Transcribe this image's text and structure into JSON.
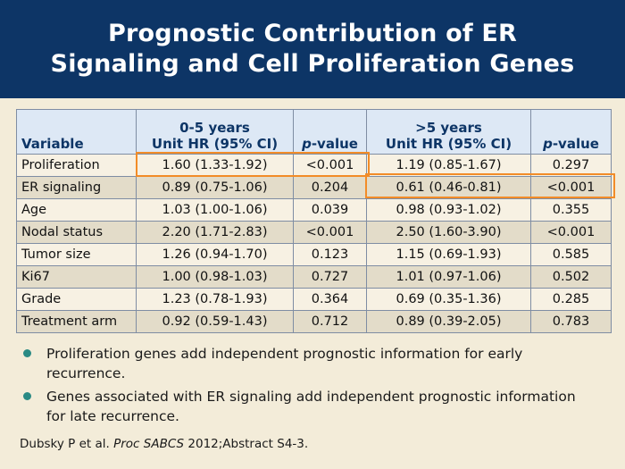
{
  "title": {
    "line1": "Prognostic Contribution of ER",
    "line2": "Signaling and Cell Proliferation Genes"
  },
  "table": {
    "headers": {
      "variable": "Variable",
      "group1": "0-5 years",
      "hr_label": "Unit HR (95% CI)",
      "pvalue_p": "p",
      "pvalue_rest": "-value",
      "group2": ">5 years"
    },
    "rows": [
      {
        "variable": "Proliferation",
        "hr1": "1.60 (1.33-1.92)",
        "p1": "<0.001",
        "hr2": "1.19 (0.85-1.67)",
        "p2": "0.297"
      },
      {
        "variable": "ER signaling",
        "hr1": "0.89 (0.75-1.06)",
        "p1": "0.204",
        "hr2": "0.61 (0.46-0.81)",
        "p2": "<0.001"
      },
      {
        "variable": "Age",
        "hr1": "1.03 (1.00-1.06)",
        "p1": "0.039",
        "hr2": "0.98 (0.93-1.02)",
        "p2": "0.355"
      },
      {
        "variable": "Nodal status",
        "hr1": "2.20 (1.71-2.83)",
        "p1": "<0.001",
        "hr2": "2.50 (1.60-3.90)",
        "p2": "<0.001"
      },
      {
        "variable": "Tumor size",
        "hr1": "1.26 (0.94-1.70)",
        "p1": "0.123",
        "hr2": "1.15 (0.69-1.93)",
        "p2": "0.585"
      },
      {
        "variable": "Ki67",
        "hr1": "1.00 (0.98-1.03)",
        "p1": "0.727",
        "hr2": "1.01 (0.97-1.06)",
        "p2": "0.502"
      },
      {
        "variable": "Grade",
        "hr1": "1.23 (0.78-1.93)",
        "p1": "0.364",
        "hr2": "0.69 (0.35-1.36)",
        "p2": "0.285"
      },
      {
        "variable": "Treatment arm",
        "hr1": "0.92 (0.59-1.43)",
        "p1": "0.712",
        "hr2": "0.89 (0.39-2.05)",
        "p2": "0.783"
      }
    ]
  },
  "bullets": [
    "Proliferation genes add independent prognostic information for early recurrence.",
    "Genes associated with ER signaling add independent prognostic information for late recurrence."
  ],
  "reference": {
    "authors": "Dubsky P et al. ",
    "journal": "Proc SABCS",
    "rest": " 2012;Abstract S4-3."
  },
  "colors": {
    "title_bg": "#0d3566",
    "background": "#f3ecd9",
    "highlight": "#f28c28",
    "bullet": "#2a8a84"
  }
}
